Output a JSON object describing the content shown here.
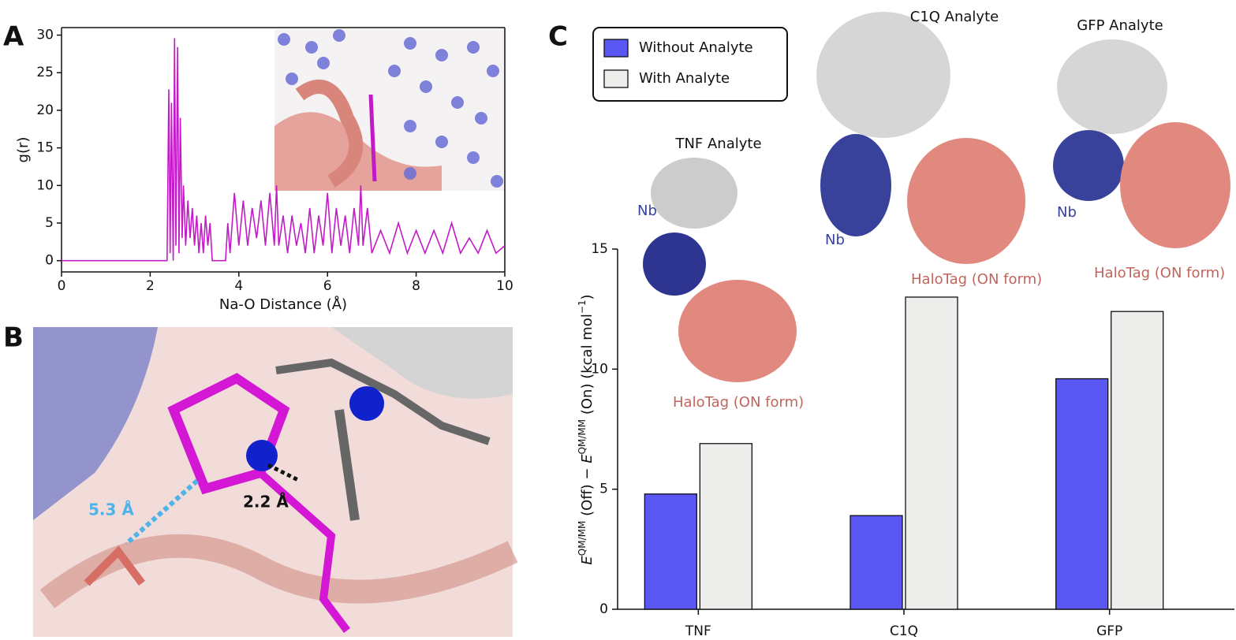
{
  "panels": {
    "a": "A",
    "b": "B",
    "c": "C"
  },
  "chart_data": [
    {
      "type": "line",
      "xlabel": "Na-O Distance (Å)",
      "ylabel": "g(r)",
      "color": "#c21bc6",
      "x": [
        0,
        2.38,
        2.42,
        2.45,
        2.48,
        2.52,
        2.55,
        2.58,
        2.62,
        2.65,
        2.68,
        2.72,
        2.75,
        2.8,
        2.85,
        2.9,
        2.95,
        3.0,
        3.05,
        3.1,
        3.15,
        3.2,
        3.25,
        3.3,
        3.35,
        3.4,
        3.45,
        3.7,
        3.75,
        3.8,
        3.9,
        4.0,
        4.1,
        4.2,
        4.3,
        4.4,
        4.5,
        4.6,
        4.7,
        4.8,
        4.85,
        4.9,
        5.0,
        5.1,
        5.2,
        5.3,
        5.4,
        5.5,
        5.6,
        5.7,
        5.8,
        5.9,
        6.0,
        6.1,
        6.2,
        6.3,
        6.4,
        6.5,
        6.6,
        6.7,
        6.75,
        6.8,
        6.9,
        7.0,
        7.2,
        7.4,
        7.6,
        7.8,
        8.0,
        8.2,
        8.4,
        8.6,
        8.8,
        9.0,
        9.2,
        9.4,
        9.6,
        9.8,
        10.0
      ],
      "values": [
        0,
        0,
        22.8,
        1,
        21,
        0,
        29.6,
        2,
        28.4,
        1,
        19,
        3,
        10,
        2,
        8,
        3,
        7,
        2,
        6,
        1,
        5,
        1,
        6,
        2,
        5,
        0,
        0,
        0,
        5,
        1,
        9,
        2,
        8,
        2,
        7,
        3,
        8,
        2,
        9,
        2,
        10,
        2,
        6,
        1,
        6,
        2,
        5,
        1,
        7,
        1,
        6,
        2,
        9,
        1,
        7,
        2,
        6,
        1,
        7,
        2,
        10,
        2,
        7,
        1,
        4,
        1,
        5,
        1,
        4,
        1,
        4,
        1,
        5,
        1,
        3,
        1,
        4,
        1,
        2
      ],
      "xlim": [
        0,
        10
      ],
      "xticks": [
        0,
        2,
        4,
        6,
        8,
        10
      ],
      "ylim": [
        -1.5,
        31
      ],
      "yticks": [
        0,
        5,
        10,
        15,
        20,
        25,
        30
      ]
    },
    {
      "type": "bar",
      "ylabel": [
        "E",
        "QM/MM",
        " (Off) − ",
        "E",
        "QM/MM",
        " (On) (kcal mol",
        "−1",
        ")"
      ],
      "categories": [
        "TNF",
        "C1Q",
        "GFP"
      ],
      "series": [
        {
          "name": "Without Analyte",
          "color": "#5a57f5",
          "values": [
            4.8,
            3.9,
            9.6
          ]
        },
        {
          "name": "With Analyte",
          "color": "#ededeb",
          "values": [
            6.9,
            13.0,
            12.4
          ]
        }
      ],
      "ylim": [
        0,
        15
      ],
      "yticks": [
        0,
        5,
        10,
        15
      ]
    }
  ],
  "panel_b": {
    "distances": [
      "5.3 Å",
      "2.2 Å"
    ]
  },
  "panel_c": {
    "analytes": [
      "TNF Analyte",
      "C1Q Analyte",
      "GFP Analyte"
    ],
    "nb": [
      "Nb",
      "Nb",
      "Nb"
    ],
    "halotag": [
      "HaloTag (ON form)",
      "HaloTag (ON form)",
      "HaloTag (ON form)"
    ]
  }
}
